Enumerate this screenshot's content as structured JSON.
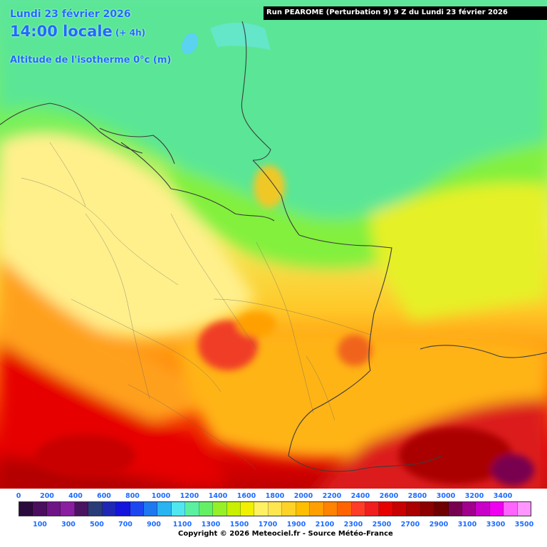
{
  "header": {
    "date_line": "Lundi 23 février 2026",
    "time_line": "14:00 locale",
    "time_offset": "(+ 4h)",
    "parameter": "Altitude de l'isotherme 0°c (m)"
  },
  "run_info": "Run PEAROME (Perturbation 9) 9 Z du Lundi 23 février 2026",
  "legend": {
    "labels_top": [
      "0",
      "200",
      "400",
      "600",
      "800",
      "1000",
      "1200",
      "1400",
      "1600",
      "1800",
      "2000",
      "2200",
      "2400",
      "2600",
      "2800",
      "3000",
      "3200",
      "3400"
    ],
    "labels_bottom": [
      "100",
      "300",
      "500",
      "700",
      "900",
      "1100",
      "1300",
      "1500",
      "1700",
      "1900",
      "2100",
      "2300",
      "2500",
      "2700",
      "2900",
      "3100",
      "3300",
      "3500"
    ],
    "colors": [
      "#2a0a3c",
      "#4b0d5e",
      "#6e1486",
      "#8a1ea0",
      "#4a1460",
      "#283c78",
      "#1e28b4",
      "#1414dc",
      "#1e46f0",
      "#1e78f0",
      "#28b4f0",
      "#50e6f0",
      "#5af0a0",
      "#64f064",
      "#96f028",
      "#c8f000",
      "#f0f000",
      "#fff064",
      "#ffe650",
      "#ffd228",
      "#ffbe00",
      "#ffa000",
      "#ff8200",
      "#ff6400",
      "#ff3c28",
      "#f01e1e",
      "#e60000",
      "#c80000",
      "#aa0000",
      "#8c0000",
      "#6e0000",
      "#780050",
      "#a0008c",
      "#c800c8",
      "#f000f0",
      "#ff64ff",
      "#ff96ff"
    ],
    "units": "m"
  },
  "map": {
    "water_color": "#5ad2f0",
    "border_color": "#3c3c3c"
  },
  "footer": {
    "copyright": "Copyright © 2026 Meteociel.fr - Source Météo-France"
  }
}
